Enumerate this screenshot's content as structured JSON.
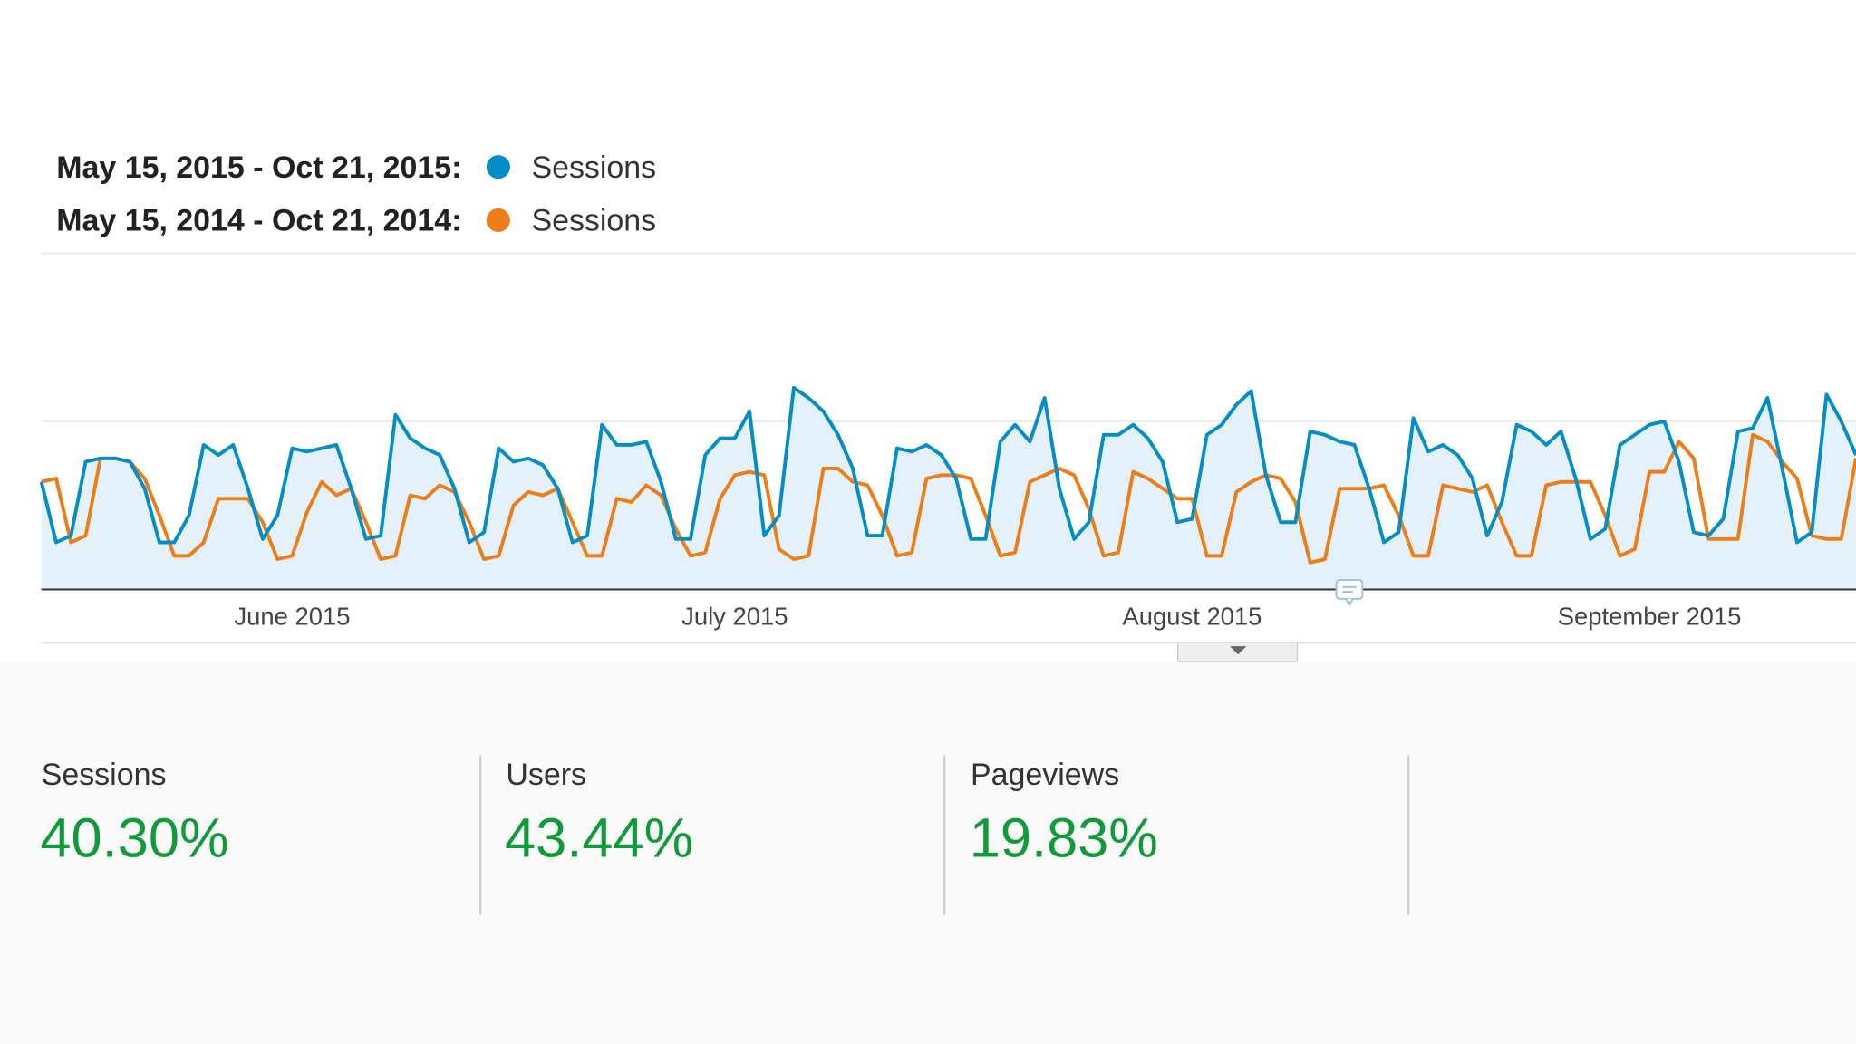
{
  "chart_data": {
    "type": "line",
    "series": [
      {
        "period": "May 15, 2015 - Oct 21, 2015:",
        "name": "Sessions",
        "color": "#058dc7",
        "area": "#e5f1fa",
        "values": [
          32,
          14,
          16,
          38,
          39,
          39,
          38,
          30,
          14,
          14,
          22,
          43,
          40,
          43,
          30,
          15,
          22,
          42,
          41,
          42,
          43,
          30,
          15,
          16,
          52,
          45,
          42,
          40,
          30,
          14,
          17,
          42,
          38,
          39,
          37,
          30,
          14,
          16,
          49,
          43,
          43,
          44,
          32,
          15,
          15,
          40,
          45,
          45,
          53,
          16,
          22,
          60,
          57,
          53,
          46,
          36,
          16,
          16,
          42,
          41,
          43,
          40,
          33,
          15,
          15,
          44,
          49,
          44,
          57,
          30,
          15,
          20,
          46,
          46,
          49,
          45,
          38,
          20,
          21,
          46,
          49,
          55,
          59,
          34,
          20,
          20,
          47,
          46,
          44,
          43,
          30,
          14,
          17,
          51,
          41,
          43,
          40,
          33,
          16,
          26,
          49,
          47,
          43,
          47,
          33,
          15,
          18,
          43,
          46,
          49,
          50,
          38,
          17,
          16,
          21,
          47,
          48,
          57,
          36,
          14,
          17,
          58,
          50,
          40
        ]
      },
      {
        "period": "May 15, 2014 - Oct 21, 2014:",
        "name": "Sessions",
        "color": "#ed7e17",
        "values": [
          32,
          33,
          14,
          16,
          39,
          39,
          38,
          33,
          22,
          10,
          10,
          14,
          27,
          27,
          27,
          20,
          9,
          10,
          23,
          32,
          28,
          30,
          20,
          9,
          10,
          28,
          27,
          31,
          29,
          20,
          9,
          10,
          25,
          29,
          28,
          30,
          20,
          10,
          10,
          27,
          26,
          31,
          28,
          18,
          10,
          11,
          27,
          34,
          35,
          34,
          12,
          9,
          10,
          36,
          36,
          32,
          31,
          22,
          10,
          11,
          33,
          34,
          34,
          33,
          22,
          10,
          11,
          32,
          34,
          36,
          34,
          24,
          10,
          11,
          35,
          33,
          30,
          27,
          27,
          10,
          10,
          29,
          32,
          34,
          33,
          26,
          8,
          9,
          30,
          30,
          30,
          31,
          22,
          10,
          10,
          31,
          30,
          29,
          31,
          20,
          10,
          10,
          31,
          32,
          32,
          32,
          22,
          10,
          12,
          35,
          35,
          44,
          39,
          15,
          15,
          15,
          46,
          44,
          38,
          33,
          16,
          15,
          15,
          39
        ]
      }
    ],
    "xlim": [
      0,
      123
    ],
    "xticks": [
      {
        "value": 17,
        "label": "June 2015"
      },
      {
        "value": 47,
        "label": "July 2015"
      },
      {
        "value": 78,
        "label": "August 2015"
      },
      {
        "value": 109,
        "label": "September 2015"
      }
    ],
    "ylim": [
      0,
      100
    ],
    "yticks": [
      0,
      50,
      100
    ],
    "grid": true
  },
  "metrics": [
    {
      "label": "Sessions",
      "value": "40.30%"
    },
    {
      "label": "Users",
      "value": "43.44%"
    },
    {
      "label": "Pageviews",
      "value": "19.83%"
    }
  ]
}
